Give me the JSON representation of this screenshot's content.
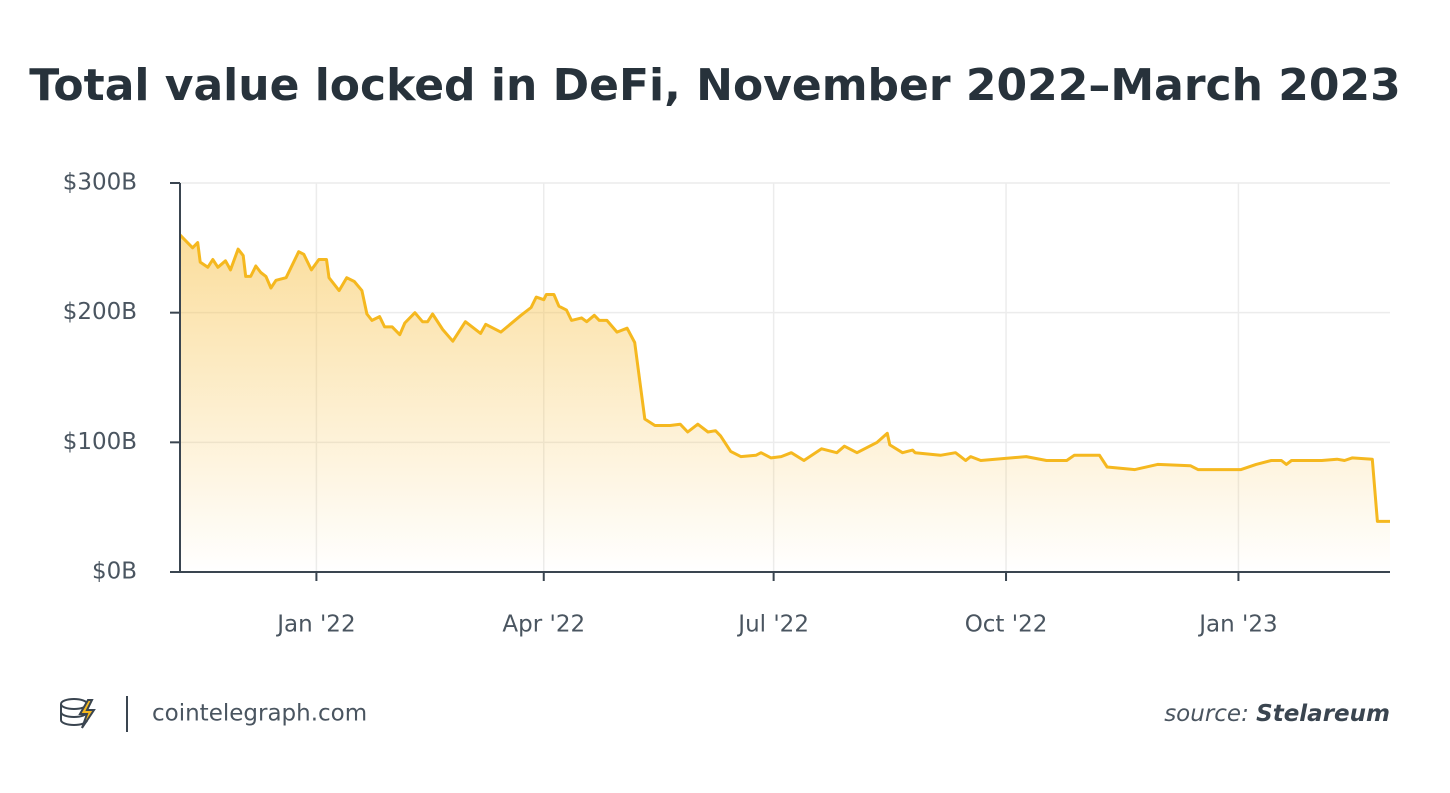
{
  "chart_data": {
    "type": "area-line",
    "title": "Total value locked in DeFi, November 2022–March 2023",
    "x": [
      -54,
      -49,
      -47,
      -46,
      -43,
      -41,
      -39,
      -36,
      -34,
      -31,
      -29,
      -28,
      -26,
      -24,
      -22,
      -20,
      -18,
      -16,
      -12,
      -7,
      -5,
      -2,
      1,
      4,
      5,
      9,
      12,
      15,
      18,
      20,
      22,
      25,
      27,
      30,
      33,
      35,
      39,
      42,
      44,
      46,
      50,
      54,
      59,
      65,
      67,
      73,
      81,
      85,
      87,
      90,
      91,
      94,
      96,
      99,
      101,
      105,
      107,
      110,
      112,
      115,
      119,
      123,
      126,
      130,
      134,
      140,
      144,
      147,
      151,
      155,
      158,
      160,
      164,
      168,
      174,
      176,
      180,
      184,
      188,
      193,
      200,
      206,
      209,
      214,
      222,
      226,
      227,
      232,
      236,
      237,
      247,
      253,
      255,
      257,
      259,
      263,
      281,
      289,
      297,
      300,
      306,
      310,
      313,
      324,
      333,
      346,
      349,
      366,
      372,
      378,
      382,
      384,
      386,
      398,
      404,
      407,
      410,
      418,
      420,
      425
    ],
    "values": [
      260,
      250,
      254,
      239,
      235,
      241,
      235,
      240,
      233,
      249,
      244,
      228,
      228,
      236,
      231,
      228,
      219,
      225,
      227,
      247,
      245,
      233,
      241,
      241,
      227,
      217,
      227,
      224,
      217,
      199,
      194,
      197,
      189,
      189,
      183,
      192,
      200,
      193,
      193,
      199,
      187,
      178,
      193,
      184,
      191,
      185,
      198,
      204,
      212,
      210,
      214,
      214,
      205,
      202,
      194,
      196,
      193,
      198,
      194,
      194,
      185,
      188,
      177,
      118,
      113,
      113,
      114,
      108,
      114,
      108,
      109,
      105,
      93,
      89,
      90,
      92,
      88,
      89,
      92,
      86,
      95,
      92,
      97,
      92,
      100,
      107,
      98,
      92,
      94,
      92,
      90,
      92,
      89,
      86,
      89,
      86,
      89,
      86,
      86,
      90,
      90,
      90,
      81,
      79,
      83,
      82,
      79,
      79,
      83,
      86,
      86,
      83,
      86,
      86,
      87,
      86,
      88,
      87,
      39,
      39
    ],
    "color": "#f5b81f",
    "xlim": [
      -54,
      425
    ],
    "xticks": [
      {
        "value": 0,
        "label": "Jan '22"
      },
      {
        "value": 90,
        "label": "Apr '22"
      },
      {
        "value": 181,
        "label": "Jul '22"
      },
      {
        "value": 273,
        "label": "Oct '22"
      },
      {
        "value": 365,
        "label": "Jan '23"
      }
    ],
    "ylim": [
      0,
      300
    ],
    "yticks": [
      {
        "value": 0,
        "label": "$0B"
      },
      {
        "value": 100,
        "label": "$100B"
      },
      {
        "value": 200,
        "label": "$200B"
      },
      {
        "value": 300,
        "label": "$300B"
      }
    ],
    "grid": true
  },
  "footer": {
    "site": "cointelegraph.com",
    "source_label": "source:",
    "source_name": "Stelareum"
  }
}
